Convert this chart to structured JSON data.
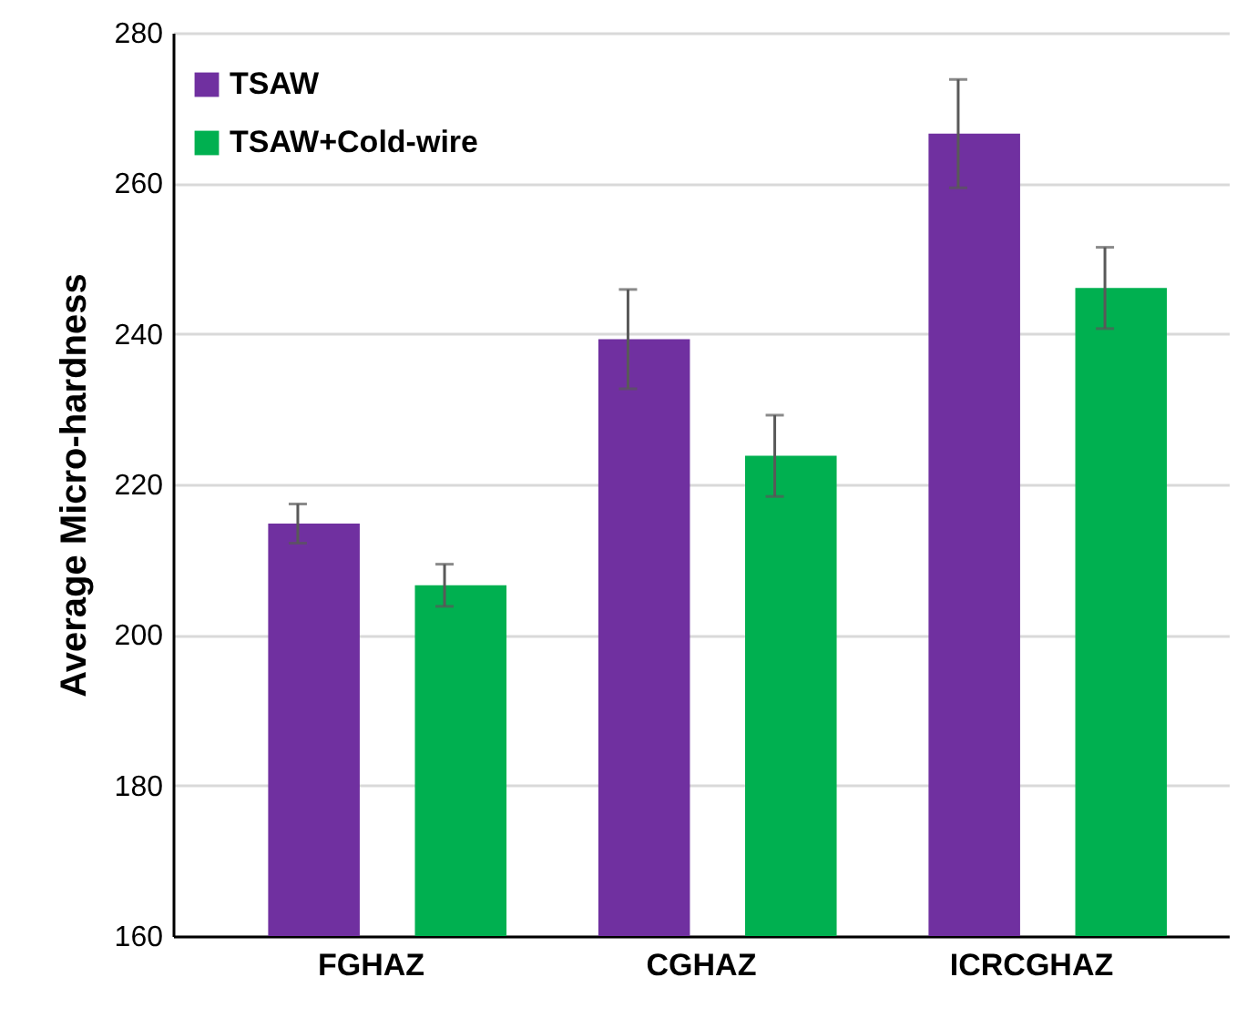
{
  "chart_data": {
    "type": "bar",
    "ylabel": "Average Micro-hardness",
    "categories": [
      "FGHAZ",
      "CGHAZ",
      "ICRCGHAZ"
    ],
    "series": [
      {
        "name": "TSAW",
        "color": "#7030a0",
        "values": [
          214.8,
          239.3,
          266.6
        ],
        "errors": [
          2.6,
          6.6,
          7.2
        ]
      },
      {
        "name": "TSAW+Cold-wire",
        "color": "#00b050",
        "values": [
          206.6,
          223.8,
          246.1
        ],
        "errors": [
          2.8,
          5.4,
          5.4
        ]
      }
    ],
    "ylim": [
      160,
      280
    ],
    "yticks": [
      160,
      180,
      200,
      220,
      240,
      260,
      280
    ],
    "grid": "y",
    "legend": "top left"
  }
}
